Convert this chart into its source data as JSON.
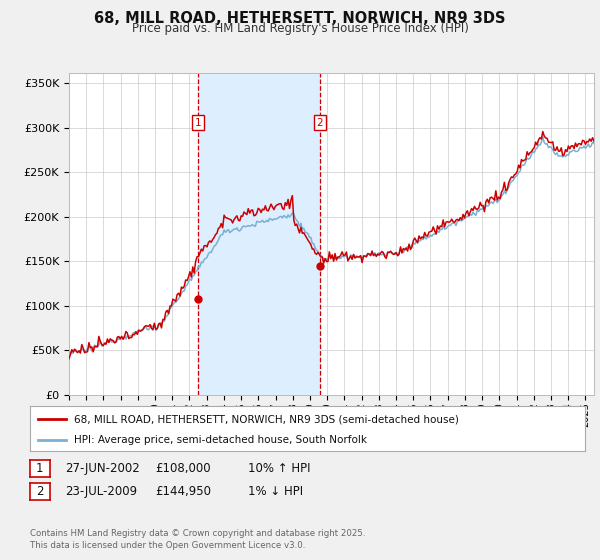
{
  "title": "68, MILL ROAD, HETHERSETT, NORWICH, NR9 3DS",
  "subtitle": "Price paid vs. HM Land Registry's House Price Index (HPI)",
  "background_color": "#f0f0f0",
  "plot_bg_color": "#ffffff",
  "grid_color": "#cccccc",
  "sale1_date": 2002.49,
  "sale1_price": 108000,
  "sale1_date_str": "27-JUN-2002",
  "sale1_pct_str": "10% ↑ HPI",
  "sale2_date": 2009.56,
  "sale2_price": 144950,
  "sale2_date_str": "23-JUL-2009",
  "sale2_pct_str": "1% ↓ HPI",
  "ylabel_ticks": [
    "£0",
    "£50K",
    "£100K",
    "£150K",
    "£200K",
    "£250K",
    "£300K",
    "£350K"
  ],
  "ylabel_values": [
    0,
    50000,
    100000,
    150000,
    200000,
    250000,
    300000,
    350000
  ],
  "xmin": 1995.0,
  "xmax": 2025.5,
  "ymin": 0,
  "ymax": 362000,
  "line1_color": "#cc0000",
  "line2_color": "#7ab0d4",
  "shade_color": "#ddeeff",
  "vline_color": "#cc0000",
  "legend1_label": "68, MILL ROAD, HETHERSETT, NORWICH, NR9 3DS (semi-detached house)",
  "legend2_label": "HPI: Average price, semi-detached house, South Norfolk",
  "footer": "Contains HM Land Registry data © Crown copyright and database right 2025.\nThis data is licensed under the Open Government Licence v3.0."
}
